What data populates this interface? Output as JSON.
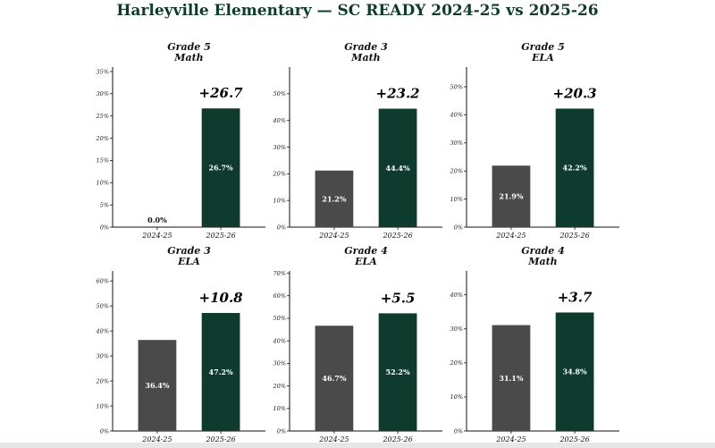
{
  "title": "Harleyville Elementary — SC READY 2024-25 vs 2025-26",
  "colors": {
    "prior": "#4a4a4a",
    "current": "#0e3b2e",
    "title": "#0e3b2e"
  },
  "chart_data": [
    {
      "type": "bar",
      "title_line1": "Grade 5",
      "title_line2": "Math",
      "categories": [
        "2024-25",
        "2025-26"
      ],
      "values": [
        0.0,
        26.7
      ],
      "value_labels": [
        "0.0%",
        "26.7%"
      ],
      "change_label": "+26.7",
      "ylim": [
        0,
        36
      ],
      "yticks": [
        0,
        5,
        10,
        15,
        20,
        25,
        30,
        35
      ]
    },
    {
      "type": "bar",
      "title_line1": "Grade 3",
      "title_line2": "Math",
      "categories": [
        "2024-25",
        "2025-26"
      ],
      "values": [
        21.2,
        44.4
      ],
      "value_labels": [
        "21.2%",
        "44.4%"
      ],
      "change_label": "+23.2",
      "ylim": [
        0,
        60
      ],
      "yticks": [
        0,
        10,
        20,
        30,
        40,
        50
      ]
    },
    {
      "type": "bar",
      "title_line1": "Grade 5",
      "title_line2": "ELA",
      "categories": [
        "2024-25",
        "2025-26"
      ],
      "values": [
        21.9,
        42.2
      ],
      "value_labels": [
        "21.9%",
        "42.2%"
      ],
      "change_label": "+20.3",
      "ylim": [
        0,
        57
      ],
      "yticks": [
        0,
        10,
        20,
        30,
        40,
        50
      ]
    },
    {
      "type": "bar",
      "title_line1": "Grade 3",
      "title_line2": "ELA",
      "categories": [
        "2024-25",
        "2025-26"
      ],
      "values": [
        36.4,
        47.2
      ],
      "value_labels": [
        "36.4%",
        "47.2%"
      ],
      "change_label": "+10.8",
      "ylim": [
        0,
        64
      ],
      "yticks": [
        0,
        10,
        20,
        30,
        40,
        50,
        60
      ]
    },
    {
      "type": "bar",
      "title_line1": "Grade 4",
      "title_line2": "ELA",
      "categories": [
        "2024-25",
        "2025-26"
      ],
      "values": [
        46.7,
        52.2
      ],
      "value_labels": [
        "46.7%",
        "52.2%"
      ],
      "change_label": "+5.5",
      "ylim": [
        0,
        71
      ],
      "yticks": [
        0,
        10,
        20,
        30,
        40,
        50,
        60,
        70
      ]
    },
    {
      "type": "bar",
      "title_line1": "Grade 4",
      "title_line2": "Math",
      "categories": [
        "2024-25",
        "2025-26"
      ],
      "values": [
        31.1,
        34.8
      ],
      "value_labels": [
        "31.1%",
        "34.8%"
      ],
      "change_label": "+3.7",
      "ylim": [
        0,
        47
      ],
      "yticks": [
        0,
        10,
        20,
        30,
        40
      ]
    }
  ]
}
